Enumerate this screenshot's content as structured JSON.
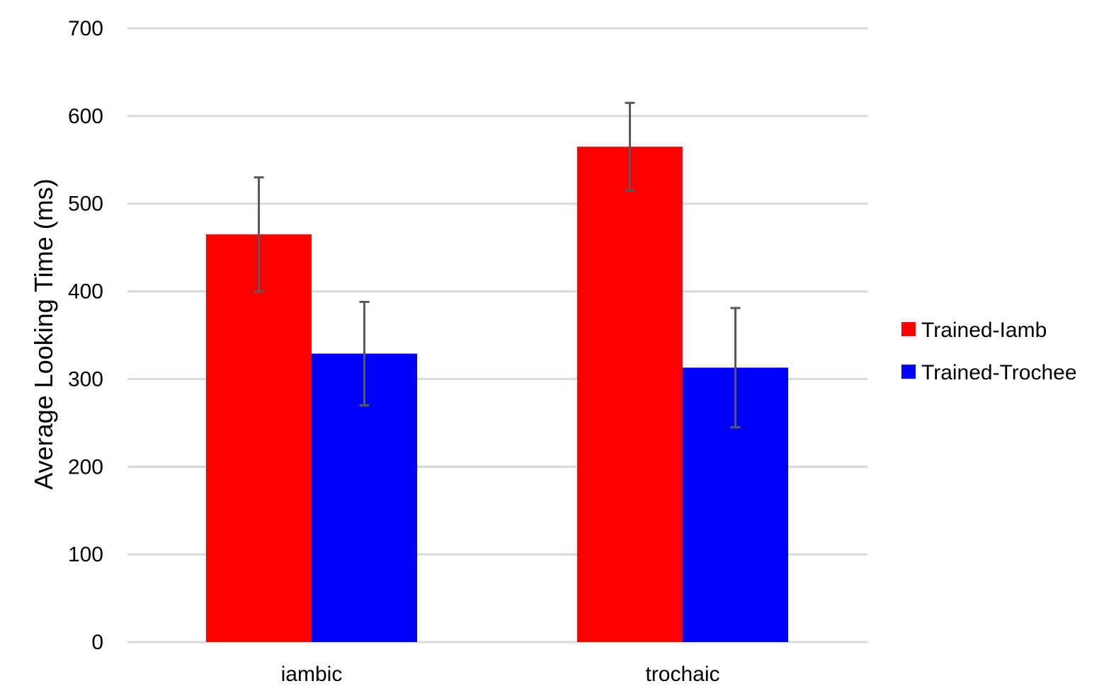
{
  "chart_data": {
    "type": "bar",
    "title": "",
    "xlabel": "",
    "ylabel": "Average Looking Time (ms)",
    "ylim": [
      0,
      700
    ],
    "yticks": [
      0,
      100,
      200,
      300,
      400,
      500,
      600,
      700
    ],
    "grid": true,
    "legend_position": "right",
    "categories": [
      "iambic",
      "trochaic"
    ],
    "series": [
      {
        "name": "Trained-Iamb",
        "color": "#ff0000",
        "values": [
          465,
          565
        ],
        "errors": [
          65,
          50
        ]
      },
      {
        "name": "Trained-Trochee",
        "color": "#0000ff",
        "values": [
          329,
          313
        ],
        "errors": [
          59,
          68
        ]
      }
    ]
  }
}
